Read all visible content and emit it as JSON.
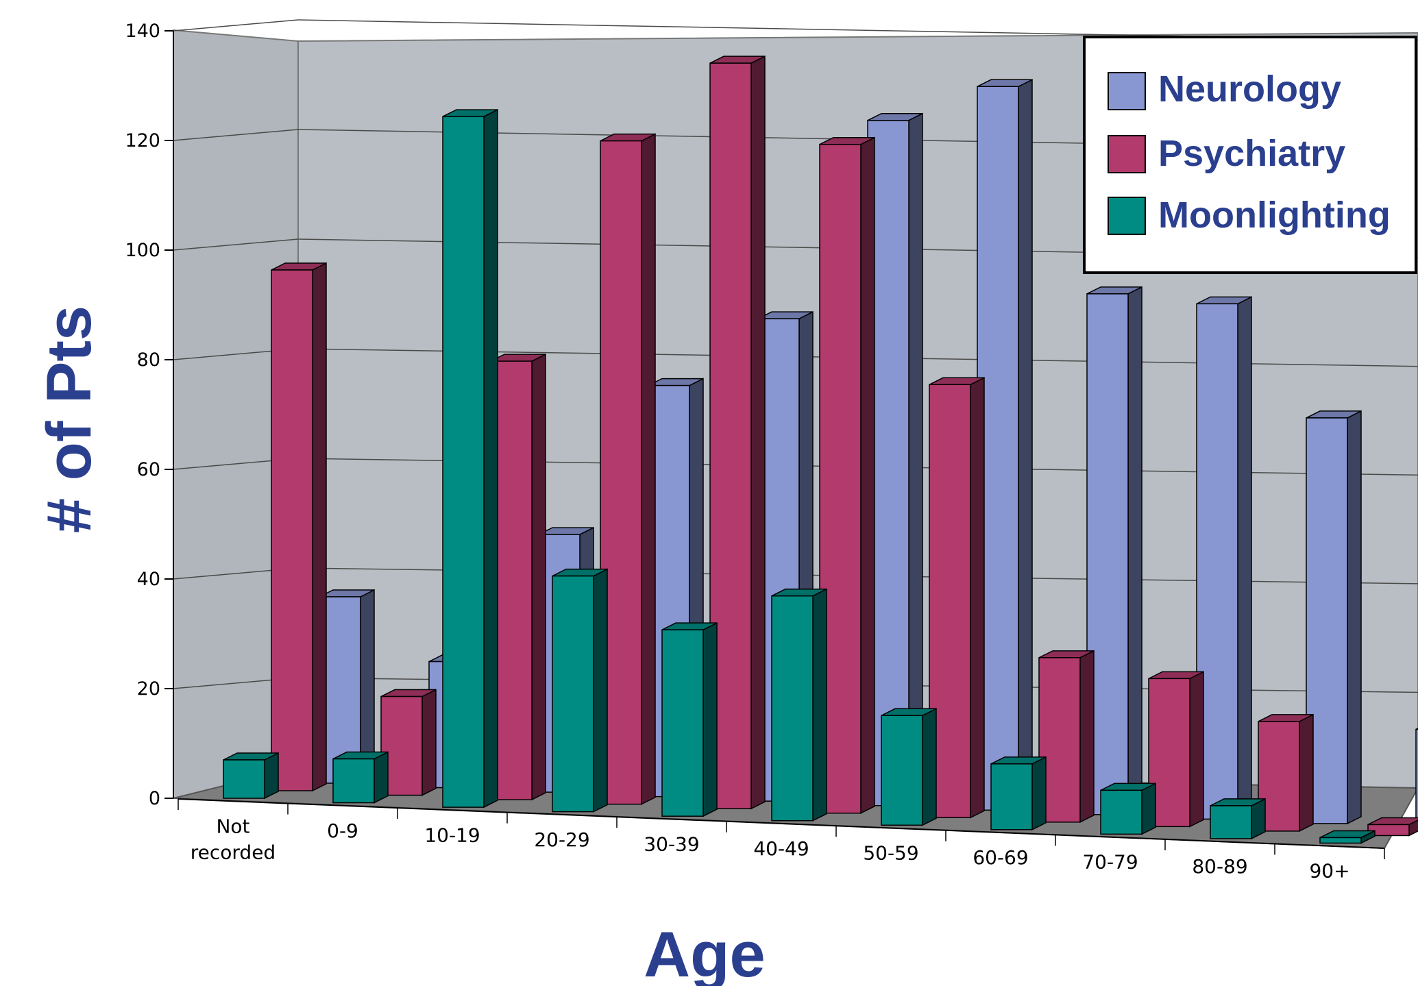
{
  "chart_data": {
    "type": "bar",
    "title": "",
    "xlabel": "Age",
    "ylabel": "# of Pts",
    "ylim": [
      0,
      140
    ],
    "yticks": [
      0,
      20,
      40,
      60,
      80,
      100,
      120,
      140
    ],
    "categories": [
      [
        "Not",
        "recorded"
      ],
      [
        "0-9"
      ],
      [
        "10-19"
      ],
      [
        "20-29"
      ],
      [
        "30-39"
      ],
      [
        "40-49"
      ],
      [
        "50-59"
      ],
      [
        "60-69"
      ],
      [
        "70-79"
      ],
      [
        "80-89"
      ],
      [
        "90+"
      ]
    ],
    "series": [
      {
        "name": "Neurology",
        "color": "#8896d2",
        "values": [
          34,
          23,
          47,
          75,
          88,
          125,
          132,
          95,
          94,
          74,
          18
        ]
      },
      {
        "name": "Psychiatry",
        "color": "#b23a6c",
        "values": [
          95,
          18,
          80,
          121,
          136,
          122,
          79,
          30,
          27,
          20,
          2
        ]
      },
      {
        "name": "Moonlighting",
        "color": "#008c82",
        "values": [
          7,
          8,
          126,
          43,
          34,
          41,
          20,
          12,
          8,
          6,
          1
        ]
      }
    ],
    "grid": true,
    "legend": "top-right"
  }
}
